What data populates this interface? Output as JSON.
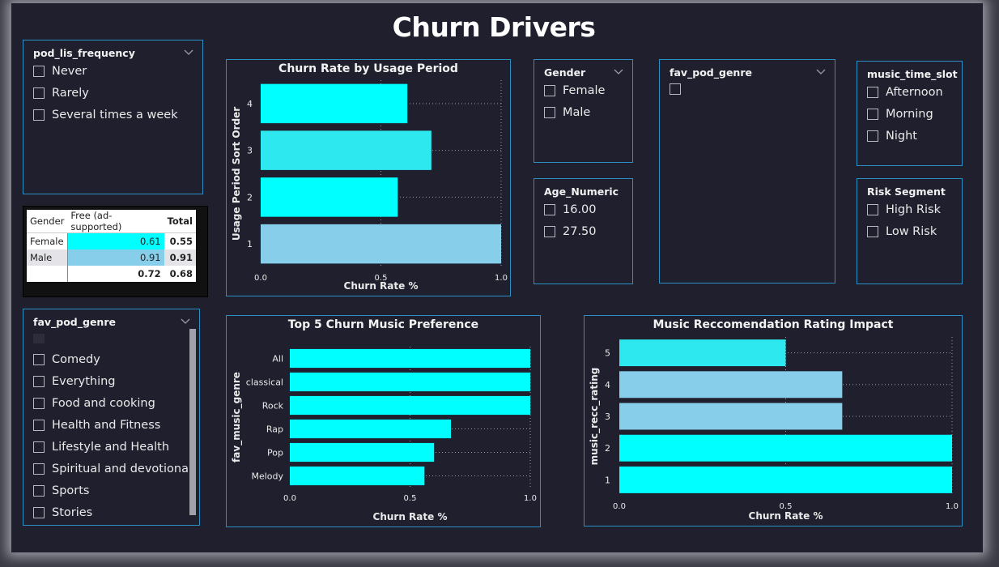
{
  "page": {
    "title": "Churn Drivers"
  },
  "slicers": {
    "pod_lis_frequency": {
      "title": "pod_lis_frequency",
      "items": [
        "Never",
        "Rarely",
        "Several times a week"
      ]
    },
    "gender": {
      "title": "Gender",
      "items": [
        "Female",
        "Male"
      ]
    },
    "age_numeric": {
      "title": "Age_Numeric",
      "items": [
        "16.00",
        "27.50"
      ]
    },
    "fav_pod_genre_top": {
      "title": "fav_pod_genre",
      "items": [
        ""
      ]
    },
    "music_time_slot": {
      "title": "music_time_slot",
      "items": [
        "Afternoon",
        "Morning",
        "Night"
      ]
    },
    "risk_segment": {
      "title": "Risk Segment",
      "items": [
        "High Risk",
        "Low Risk"
      ]
    },
    "fav_pod_genre_list": {
      "title": "fav_pod_genre",
      "items": [
        "Comedy",
        "Everything",
        "Food and cooking",
        "Health and Fitness",
        "Lifestyle and Health",
        "Spiritual and devotional",
        "Sports",
        "Stories"
      ]
    }
  },
  "matrix": {
    "headers": [
      "Gender",
      "Free (ad-supported)",
      "Total"
    ],
    "rows": [
      {
        "label": "Female",
        "value": "0.61",
        "total": "0.55"
      },
      {
        "label": "Male",
        "value": "0.91",
        "total": "0.91"
      }
    ],
    "totals": {
      "label": "",
      "value": "0.72",
      "total": "0.68"
    }
  },
  "colors": {
    "cyan": "#00ffff",
    "cyan_mid": "#2ee8f0",
    "light_blue": "#87ceeb",
    "border": "#2a8fc4",
    "background": "#1f1f2e"
  },
  "chart_data": [
    {
      "type": "bar",
      "orientation": "horizontal",
      "title": "Churn Rate by Usage Period",
      "categories": [
        "4",
        "3",
        "2",
        "1"
      ],
      "values": [
        0.61,
        0.71,
        0.57,
        1.0
      ],
      "colors": [
        "#00ffff",
        "#2ee8f0",
        "#00ffff",
        "#87ceeb"
      ],
      "xlabel": "Churn Rate %",
      "ylabel": "Usage Period Sort Order",
      "xlim": [
        0,
        1
      ],
      "xticks": [
        "0.0",
        "0.5",
        "1.0"
      ],
      "grid": true
    },
    {
      "type": "bar",
      "orientation": "horizontal",
      "title": "Top 5 Churn Music Preference",
      "categories": [
        "All",
        "classical",
        "Rock",
        "Rap",
        "Pop",
        "Melody"
      ],
      "values": [
        1.0,
        1.0,
        1.0,
        0.67,
        0.6,
        0.56
      ],
      "colors": [
        "#00ffff",
        "#00ffff",
        "#00ffff",
        "#00ffff",
        "#00ffff",
        "#00ffff"
      ],
      "xlabel": "Churn Rate %",
      "ylabel": "fav_music_genre",
      "xlim": [
        0,
        1
      ],
      "xticks": [
        "0.0",
        "0.5",
        "1.0"
      ],
      "grid": true
    },
    {
      "type": "bar",
      "orientation": "horizontal",
      "title": "Music Reccomendation Rating Impact",
      "categories": [
        "5",
        "4",
        "3",
        "2",
        "1"
      ],
      "values": [
        0.5,
        0.67,
        0.67,
        1.0,
        1.0
      ],
      "colors": [
        "#2ee8f0",
        "#87ceeb",
        "#87ceeb",
        "#00ffff",
        "#00ffff"
      ],
      "xlabel": "Churn Rate %",
      "ylabel": "music_recc_rating",
      "xlim": [
        0,
        1
      ],
      "xticks": [
        "0.0",
        "0.5",
        "1.0"
      ],
      "grid": true
    }
  ]
}
